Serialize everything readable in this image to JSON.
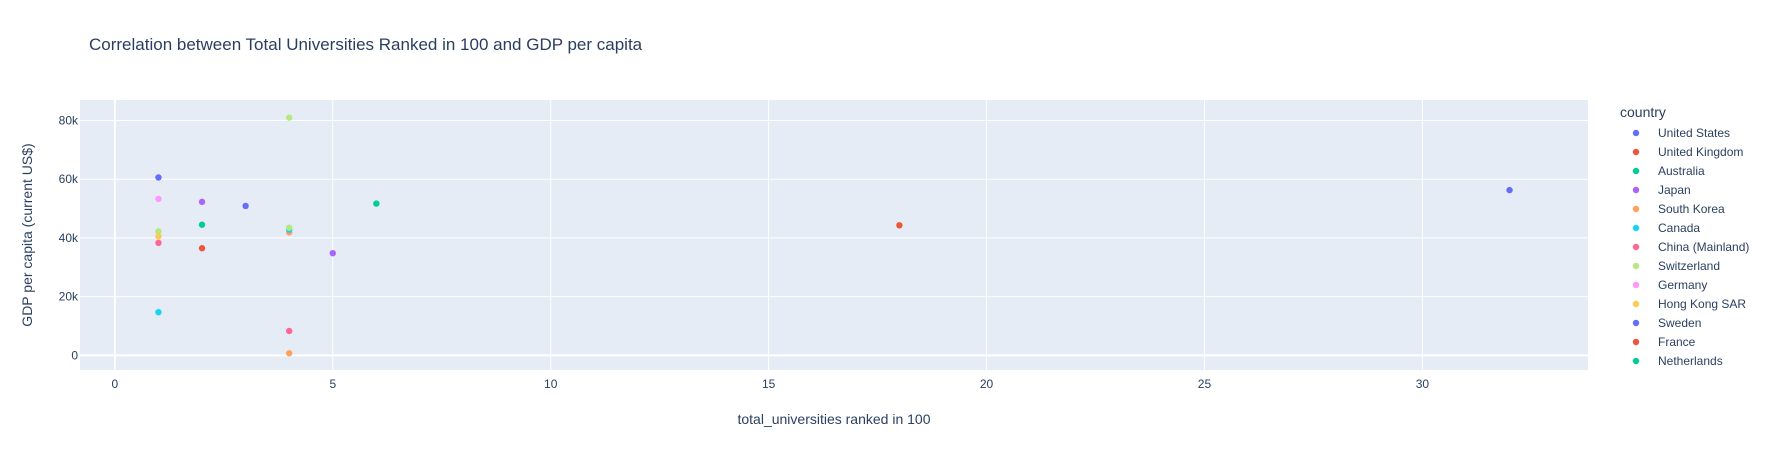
{
  "chart_data": {
    "type": "scatter",
    "title": "Correlation between Total Universities Ranked in 100 and GDP per capita",
    "xlabel": "total_universities ranked in 100",
    "ylabel": "GDP per capita (current US$)",
    "xlim": [
      -0.8,
      33.8
    ],
    "ylim": [
      -5000,
      87000
    ],
    "x_ticks": [
      0,
      5,
      10,
      15,
      20,
      25,
      30
    ],
    "y_ticks": [
      {
        "value": 0,
        "label": "0"
      },
      {
        "value": 20000,
        "label": "20k"
      },
      {
        "value": 40000,
        "label": "40k"
      },
      {
        "value": 60000,
        "label": "60k"
      },
      {
        "value": 80000,
        "label": "80k"
      }
    ],
    "grid": true,
    "plot_bgcolor": "#E5ECF6",
    "legend": {
      "title": "country",
      "placement": "right"
    },
    "series": [
      {
        "name": "United States",
        "color": "#636efa",
        "points": [
          {
            "x": 32,
            "y": 56300
          }
        ]
      },
      {
        "name": "United Kingdom",
        "color": "#EF553B",
        "points": [
          {
            "x": 18,
            "y": 44300
          }
        ]
      },
      {
        "name": "Australia",
        "color": "#00cc96",
        "points": [
          {
            "x": 6,
            "y": 51700
          }
        ]
      },
      {
        "name": "Japan",
        "color": "#ab63fa",
        "points": [
          {
            "x": 5,
            "y": 34800
          }
        ]
      },
      {
        "name": "South Korea",
        "color": "#FFA15A",
        "points": [
          {
            "x": 4,
            "y": 700
          },
          {
            "x": 4,
            "y": 41900
          }
        ]
      },
      {
        "name": "Canada",
        "color": "#19d3f3",
        "points": [
          {
            "x": 4,
            "y": 42800
          },
          {
            "x": 1,
            "y": 14700
          }
        ]
      },
      {
        "name": "China (Mainland)",
        "color": "#FF6692",
        "points": [
          {
            "x": 4,
            "y": 8300
          },
          {
            "x": 1,
            "y": 38300
          }
        ]
      },
      {
        "name": "Switzerland",
        "color": "#B6E880",
        "points": [
          {
            "x": 4,
            "y": 81000
          },
          {
            "x": 4,
            "y": 43500
          },
          {
            "x": 1,
            "y": 42200
          }
        ]
      },
      {
        "name": "Germany",
        "color": "#FF97FF",
        "points": [
          {
            "x": 1,
            "y": 53300
          }
        ]
      },
      {
        "name": "Hong Kong SAR",
        "color": "#FECB52",
        "points": [
          {
            "x": 1,
            "y": 40500
          }
        ]
      },
      {
        "name": "Sweden",
        "color": "#636efa",
        "points": [
          {
            "x": 3,
            "y": 50900
          },
          {
            "x": 1,
            "y": 60600
          }
        ]
      },
      {
        "name": "France",
        "color": "#EF553B",
        "points": [
          {
            "x": 2,
            "y": 36500
          }
        ]
      },
      {
        "name": "Netherlands",
        "color": "#00cc96",
        "points": [
          {
            "x": 2,
            "y": 44500
          }
        ]
      },
      {
        "name": "Japan",
        "color": "#ab63fa",
        "legend": false,
        "points": [
          {
            "x": 2,
            "y": 52300
          }
        ]
      }
    ]
  }
}
